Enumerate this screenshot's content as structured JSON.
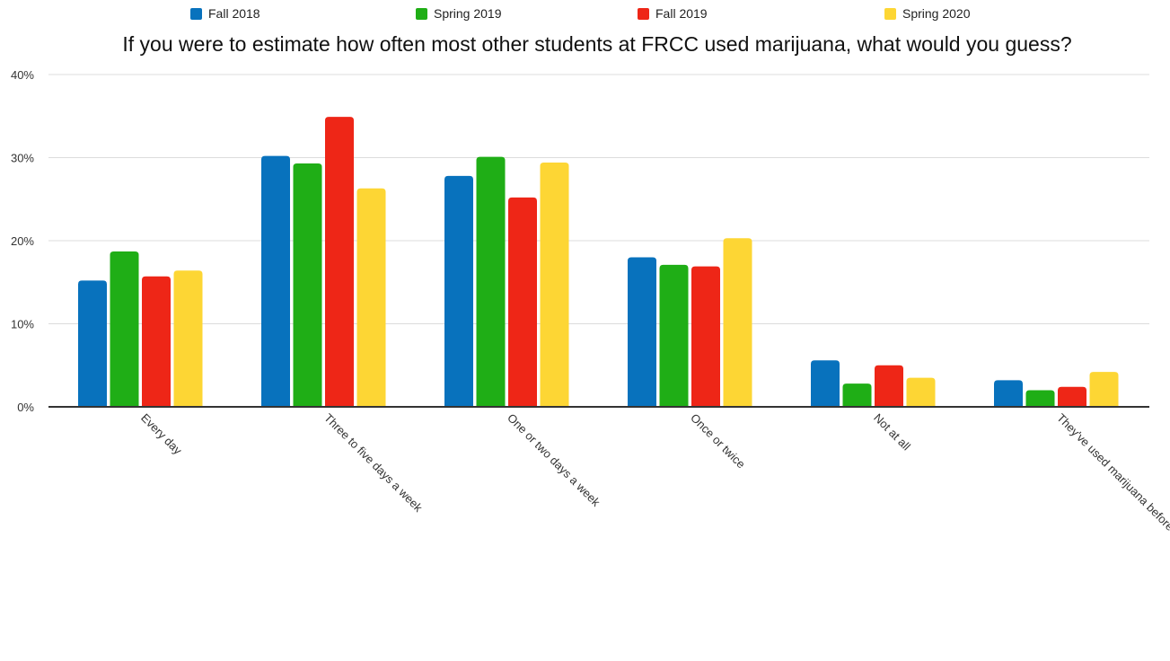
{
  "chart_data": {
    "type": "bar",
    "title": "If you were to estimate how often most other students at FRCC used marijuana, what would you guess?",
    "xlabel": "",
    "ylabel": "",
    "ylim": [
      0,
      40
    ],
    "yticks": [
      "0%",
      "10%",
      "20%",
      "30%",
      "40%"
    ],
    "yticks_values": [
      0,
      10,
      20,
      30,
      40
    ],
    "grid": true,
    "legend_position": "top",
    "categories": [
      "Every day",
      "Three to five days a week",
      "One or two days a week",
      "Once or twice",
      "Not at all",
      "They've used marijuana before but not in the last month"
    ],
    "series": [
      {
        "name": "Fall 2018",
        "color": "#0872bd",
        "values": [
          15.2,
          30.2,
          27.8,
          18.0,
          5.6,
          3.2
        ]
      },
      {
        "name": "Spring 2019",
        "color": "#1fae16",
        "values": [
          18.7,
          29.3,
          30.1,
          17.1,
          2.8,
          2.0
        ]
      },
      {
        "name": "Fall 2019",
        "color": "#ee2617",
        "values": [
          15.7,
          34.9,
          25.2,
          16.9,
          5.0,
          2.4
        ]
      },
      {
        "name": "Spring 2020",
        "color": "#fdd634",
        "values": [
          16.4,
          26.3,
          29.4,
          20.3,
          3.5,
          4.2
        ]
      }
    ]
  }
}
